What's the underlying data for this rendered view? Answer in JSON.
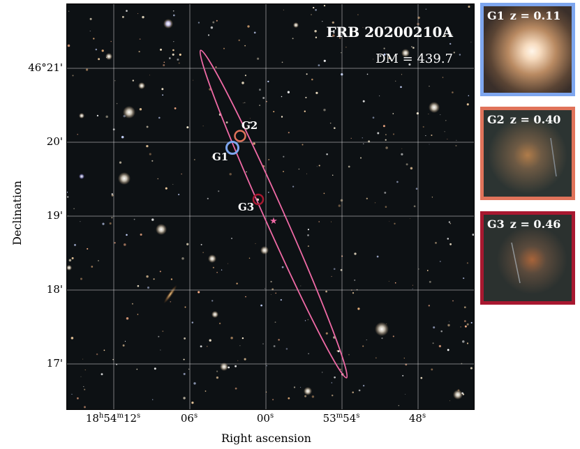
{
  "figure": {
    "title": "FRB 20200210A",
    "dm_label": "DM = 439.7",
    "y_axis_label": "Declination",
    "x_axis_label": "Right ascension",
    "y_ticks": [
      "46°21'",
      "20'",
      "19'",
      "18'",
      "17'"
    ],
    "x_ticks": [
      {
        "main": "18",
        "h": "h",
        "m_val": "54",
        "m": "m",
        "s_val": "12",
        "s": "s"
      },
      {
        "main": "06",
        "s": "s"
      },
      {
        "main": "00",
        "s": "s"
      },
      {
        "main": "53",
        "m": "m",
        "s_val": "54",
        "s": "s"
      },
      {
        "main": "48",
        "s": "s"
      }
    ]
  },
  "galaxies": [
    {
      "id": "G1",
      "z_label": "z = 0.11",
      "color": "#7ea6ee"
    },
    {
      "id": "G2",
      "z_label": "z = 0.40",
      "color": "#e0735a"
    },
    {
      "id": "G3",
      "z_label": "z = 0.46",
      "color": "#a81830"
    }
  ],
  "colors": {
    "ellipse": "#f06aa6",
    "frb_star": "#f06aa6",
    "grid": "#ffffff"
  }
}
